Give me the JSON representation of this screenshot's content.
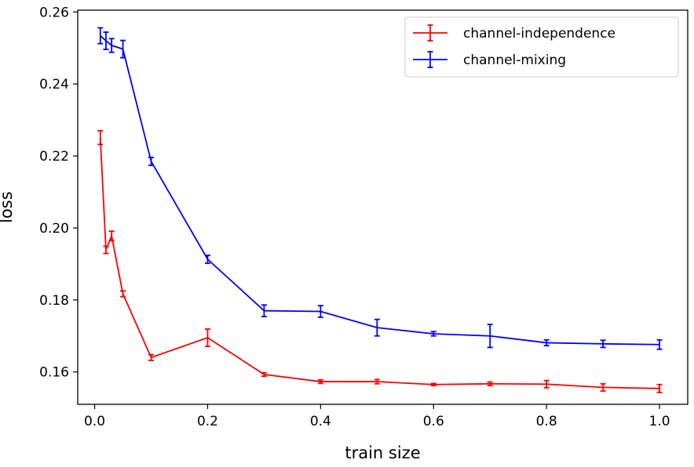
{
  "chart_data": {
    "type": "line",
    "title": "",
    "xlabel": "train size",
    "ylabel": "loss",
    "xlim": [
      -0.03,
      1.05
    ],
    "ylim": [
      0.151,
      0.2605
    ],
    "xticks": [
      0.0,
      0.2,
      0.4,
      0.6,
      0.8,
      1.0
    ],
    "xtick_labels": [
      "0.0",
      "0.2",
      "0.4",
      "0.6",
      "0.8",
      "1.0"
    ],
    "yticks": [
      0.16,
      0.18,
      0.2,
      0.22,
      0.24,
      0.26
    ],
    "ytick_labels": [
      "0.16",
      "0.18",
      "0.20",
      "0.22",
      "0.24",
      "0.26"
    ],
    "legend_position": "top-right",
    "grid": false,
    "series": [
      {
        "name": "channel-independence",
        "color": "#ff0000",
        "x": [
          0.01,
          0.02,
          0.03,
          0.05,
          0.1,
          0.2,
          0.3,
          0.4,
          0.5,
          0.6,
          0.7,
          0.8,
          0.9,
          1.0
        ],
        "values": [
          0.2251,
          0.1939,
          0.1978,
          0.1817,
          0.164,
          0.1695,
          0.1593,
          0.1573,
          0.1573,
          0.1565,
          0.1567,
          0.1566,
          0.1557,
          0.1554
        ],
        "errors": [
          0.0019,
          0.001,
          0.0013,
          0.0008,
          0.0008,
          0.0024,
          0.0005,
          0.0005,
          0.0006,
          0.0003,
          0.0005,
          0.001,
          0.001,
          0.0011
        ]
      },
      {
        "name": "channel-mixing",
        "color": "#0000ff",
        "x": [
          0.01,
          0.02,
          0.03,
          0.05,
          0.1,
          0.2,
          0.3,
          0.4,
          0.5,
          0.6,
          0.7,
          0.8,
          0.9,
          1.0
        ],
        "values": [
          0.2534,
          0.252,
          0.2507,
          0.2497,
          0.2185,
          0.1913,
          0.177,
          0.1768,
          0.1723,
          0.1706,
          0.17,
          0.1681,
          0.1678,
          0.1676
        ],
        "errors": [
          0.0022,
          0.0024,
          0.0019,
          0.0024,
          0.0011,
          0.0011,
          0.0016,
          0.0016,
          0.0023,
          0.0006,
          0.0032,
          0.0008,
          0.001,
          0.0013
        ]
      }
    ]
  }
}
